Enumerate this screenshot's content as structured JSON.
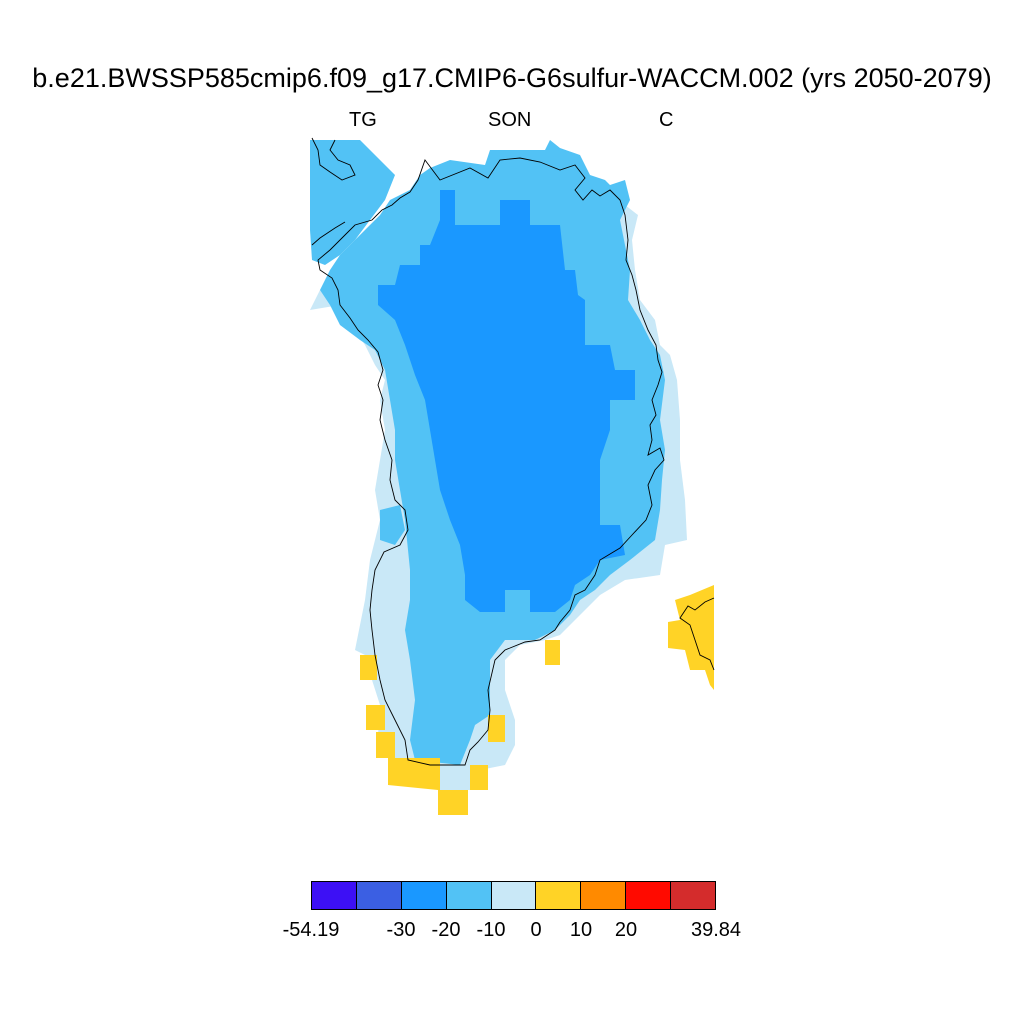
{
  "figure": {
    "title": "b.e21.BWSSP585cmip6.f09_g17.CMIP6-G6sulfur-WACCM.002 (yrs 2050-2079)",
    "subtitle_left": "TG",
    "subtitle_center": "SON",
    "subtitle_right": "C"
  },
  "colorbar": {
    "colors": [
      "#3d10f5",
      "#3b5fe3",
      "#1a98ff",
      "#52c2f5",
      "#c9e8f7",
      "#ffd326",
      "#ff8a00",
      "#ff0a00",
      "#d42c2c"
    ],
    "labels": [
      "-54.19",
      "-30",
      "-20",
      "-10",
      "0",
      "10",
      "20",
      "39.84"
    ]
  },
  "map": {
    "region": "Greenland",
    "categories": [
      {
        "name": "-10 to 0",
        "color": "#c9e8f7"
      },
      {
        "name": "-20 to -10",
        "color": "#52c2f5"
      },
      {
        "name": "-30 to -20",
        "color": "#1a98ff"
      },
      {
        "name": "0 to 10",
        "color": "#ffd326"
      }
    ]
  }
}
